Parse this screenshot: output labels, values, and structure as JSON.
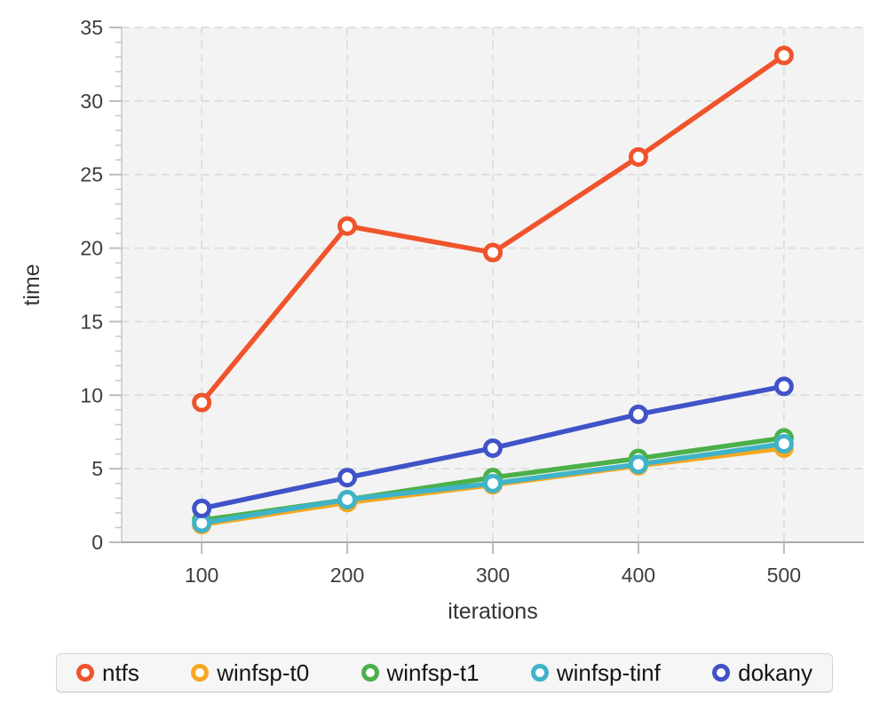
{
  "chart_data": {
    "type": "line",
    "x": [
      100,
      200,
      300,
      400,
      500
    ],
    "xlabel": "iterations",
    "ylabel": "time",
    "xlim": [
      45,
      555
    ],
    "ylim": [
      0,
      35
    ],
    "x_ticks": [
      100,
      200,
      300,
      400,
      500
    ],
    "y_ticks": [
      0,
      5,
      10,
      15,
      20,
      25,
      30,
      35
    ],
    "y_minor_tick_step": 1,
    "grid": "dashed gridlines at major ticks, both axes",
    "legend_position": "bottom",
    "marker": "open-circle",
    "series": [
      {
        "name": "ntfs",
        "color": "#f0542c",
        "values": [
          9.5,
          21.5,
          19.7,
          26.2,
          33.1
        ]
      },
      {
        "name": "winfsp-t0",
        "color": "#f6a821",
        "values": [
          1.2,
          2.7,
          3.9,
          5.2,
          6.4
        ]
      },
      {
        "name": "winfsp-t1",
        "color": "#4cb04a",
        "values": [
          1.5,
          2.9,
          4.4,
          5.7,
          7.1
        ]
      },
      {
        "name": "winfsp-tinf",
        "color": "#3fb3c9",
        "values": [
          1.3,
          2.9,
          4.0,
          5.3,
          6.7
        ]
      },
      {
        "name": "dokany",
        "color": "#4053c8",
        "values": [
          2.3,
          4.4,
          6.4,
          8.7,
          10.6
        ]
      }
    ]
  },
  "colors": {
    "panel_bg": "#f3f3f3",
    "gridline": "#dcdcdc",
    "y_axis_line": "#c9c9c9",
    "x_axis_line": "#ababab",
    "tick_mark": "#bbbbbb",
    "minor_tick_mark": "#c6c6c6",
    "tick_label": "#3d3d3d",
    "axis_title": "#333333",
    "legend_bg": "#f6f6f6",
    "legend_border": "#d4d4d4",
    "legend_text": "#151515",
    "marker_fill": "#ffffff"
  }
}
